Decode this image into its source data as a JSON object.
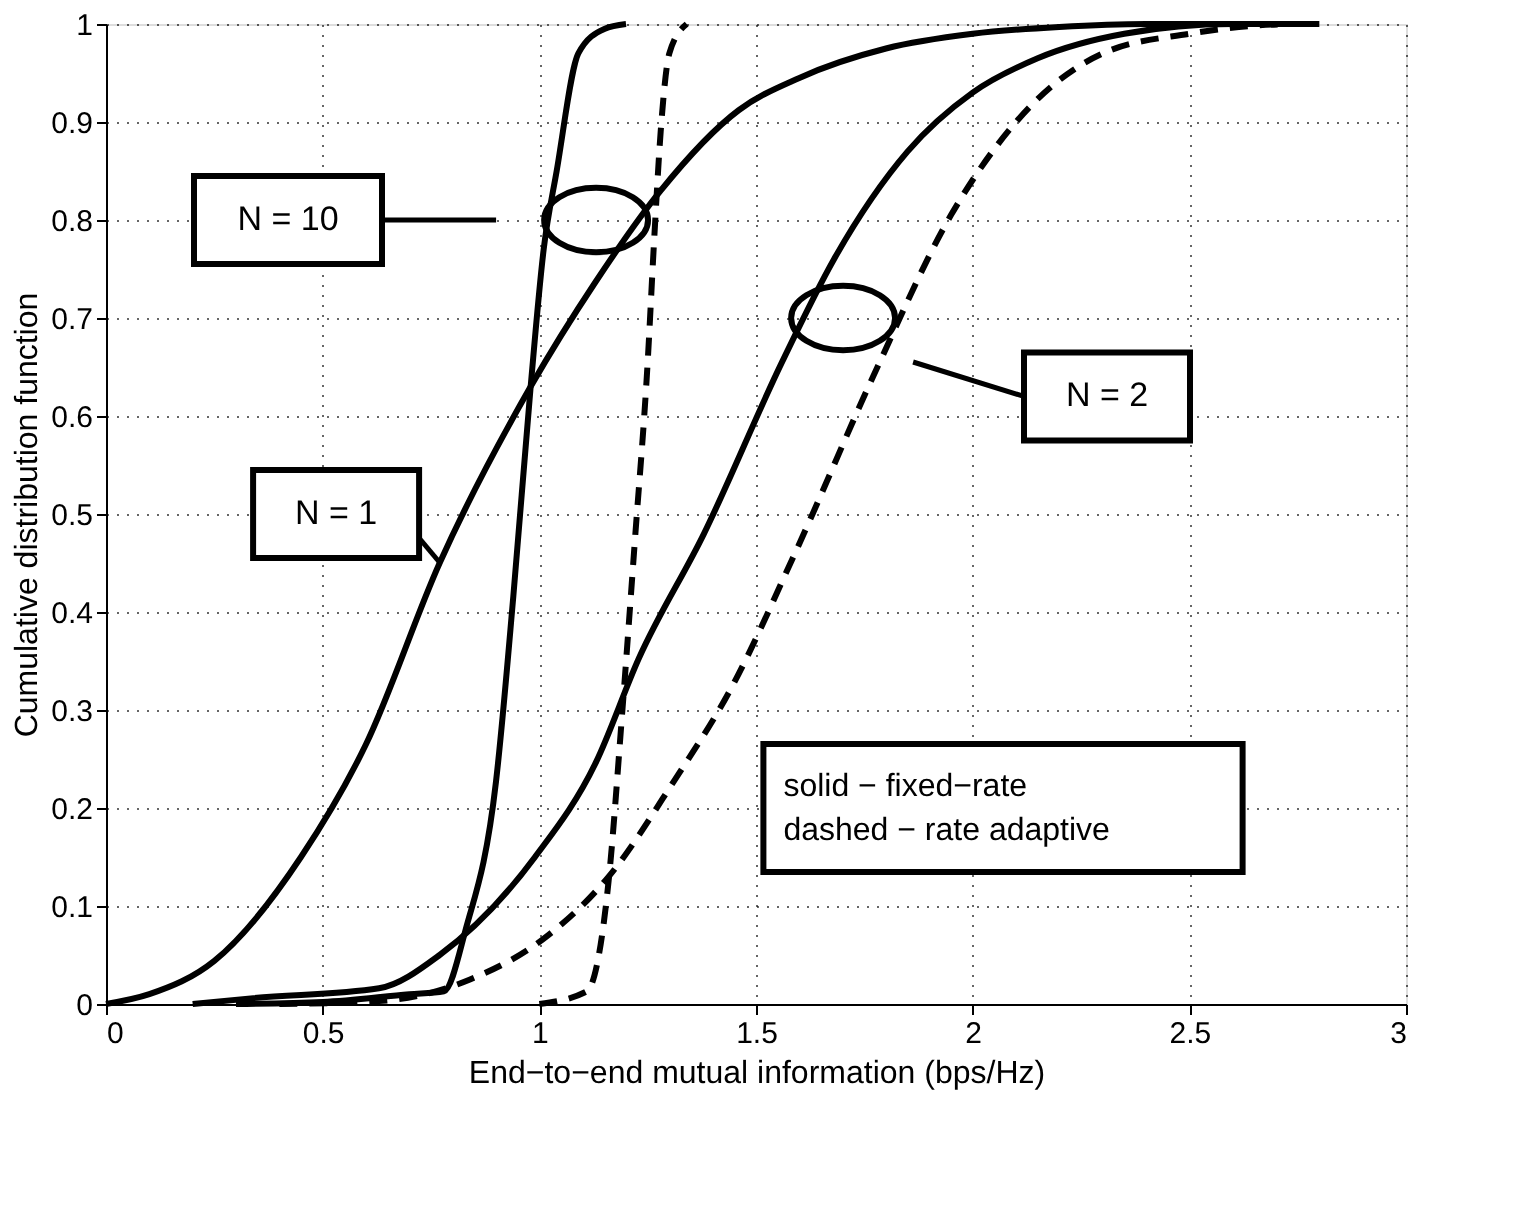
{
  "chart_data": {
    "type": "line",
    "xlabel": "End−to−end mutual information (bps/Hz)",
    "ylabel": "Cumulative distribution function",
    "xlim": [
      0,
      3
    ],
    "xticks": [
      0,
      0.5,
      1,
      1.5,
      2,
      2.5,
      3
    ],
    "ylim": [
      0,
      1
    ],
    "yticks": [
      0,
      0.1,
      0.2,
      0.3,
      0.4,
      0.5,
      0.6,
      0.7,
      0.8,
      0.9,
      1
    ],
    "grid": true,
    "marker": "none",
    "series": [
      {
        "color": "#000000",
        "line_style": "solid",
        "x": [
          0,
          0.1,
          0.25,
          0.45,
          0.6,
          0.77,
          0.98,
          1.13,
          1.28,
          1.46,
          1.6,
          1.8,
          2.0,
          2.2,
          2.4,
          2.6
        ],
        "values": [
          0,
          0.01,
          0.044,
          0.15,
          0.265,
          0.45,
          0.63,
          0.737,
          0.83,
          0.912,
          0.945,
          0.975,
          0.99,
          0.997,
          1,
          1
        ]
      },
      {
        "color": "#000000",
        "line_style": "solid",
        "x": [
          0.3,
          0.5,
          0.7,
          0.78,
          0.83,
          0.9,
          0.94,
          0.98,
          1.01,
          1.04,
          1.09,
          1.15,
          1.2
        ],
        "values": [
          0,
          0.002,
          0.01,
          0.013,
          0.076,
          0.227,
          0.416,
          0.63,
          0.77,
          0.85,
          0.97,
          0.995,
          1
        ]
      },
      {
        "color": "#000000",
        "line_style": "dashed",
        "x": [
          1.0,
          1.11,
          1.16,
          1.19,
          1.22,
          1.25,
          1.265,
          1.28,
          1.3,
          1.34
        ],
        "values": [
          0,
          0.013,
          0.126,
          0.29,
          0.47,
          0.655,
          0.78,
          0.89,
          0.97,
          1
        ]
      },
      {
        "color": "#000000",
        "line_style": "solid",
        "x": [
          0.2,
          0.34,
          0.63,
          0.77,
          0.99,
          1.13,
          1.23,
          1.38,
          1.56,
          1.68,
          1.85,
          2.0,
          2.15,
          2.35,
          2.6,
          2.8
        ],
        "values": [
          0,
          0.006,
          0.016,
          0.05,
          0.15,
          0.246,
          0.353,
          0.48,
          0.655,
          0.76,
          0.87,
          0.93,
          0.965,
          0.99,
          1,
          1
        ]
      },
      {
        "color": "#000000",
        "line_style": "dashed",
        "x": [
          0.4,
          0.63,
          0.84,
          1.02,
          1.16,
          1.31,
          1.44,
          1.59,
          1.77,
          1.95,
          2.1,
          2.3,
          2.5,
          2.75,
          2.8
        ],
        "values": [
          0,
          0.003,
          0.025,
          0.07,
          0.13,
          0.227,
          0.32,
          0.46,
          0.64,
          0.805,
          0.9,
          0.97,
          0.99,
          1,
          1
        ]
      }
    ],
    "annotations": [
      "N = 10",
      "N = 1",
      "N = 2",
      "solid − fixed−rate\ndashed − rate adaptive"
    ]
  }
}
